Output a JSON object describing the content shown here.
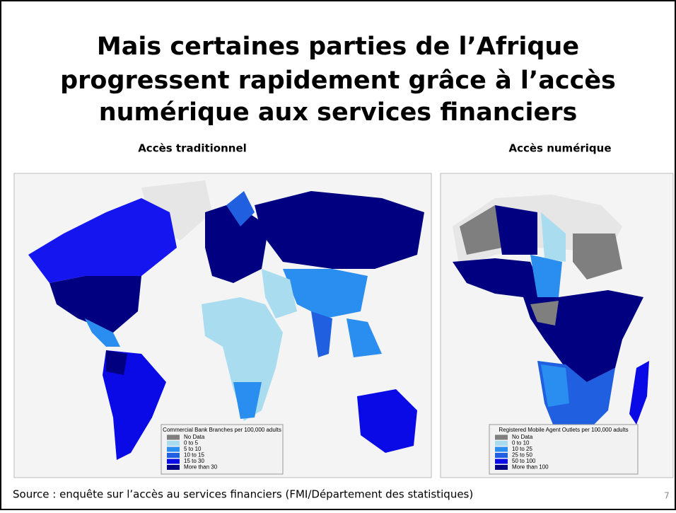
{
  "title_lines": [
    "Mais certaines parties de l’Afrique",
    "progressent rapidement grâce à l’accès",
    "numérique aux services financiers"
  ],
  "left_panel": {
    "heading": "Accès traditionnel",
    "legend": {
      "title": "Commercial Bank Branches per 100,000 adults",
      "items": [
        {
          "label": "No Data",
          "color": "#7f7f7f"
        },
        {
          "label": "0 to 5",
          "color": "#a8dcee"
        },
        {
          "label": "5 to 10",
          "color": "#2a8df0"
        },
        {
          "label": "10 to 15",
          "color": "#2060e0"
        },
        {
          "label": "15 to 30",
          "color": "#0a0ae6"
        },
        {
          "label": "More than 30",
          "color": "#000080"
        }
      ]
    }
  },
  "right_panel": {
    "heading": "Accès numérique",
    "legend": {
      "title": "Registered Mobile Agent Outlets per 100,000 adults",
      "items": [
        {
          "label": "No Data",
          "color": "#7f7f7f"
        },
        {
          "label": "0 to 10",
          "color": "#a8dcee"
        },
        {
          "label": "10 to 25",
          "color": "#2a8df0"
        },
        {
          "label": "25 to 50",
          "color": "#2060e0"
        },
        {
          "label": "50 to 100",
          "color": "#0a0ae6"
        },
        {
          "label": "More than 100",
          "color": "#000080"
        }
      ]
    }
  },
  "source": "Source : enquête sur l’accès au services financiers (FMI/Département des statistiques)",
  "page_number": "7"
}
